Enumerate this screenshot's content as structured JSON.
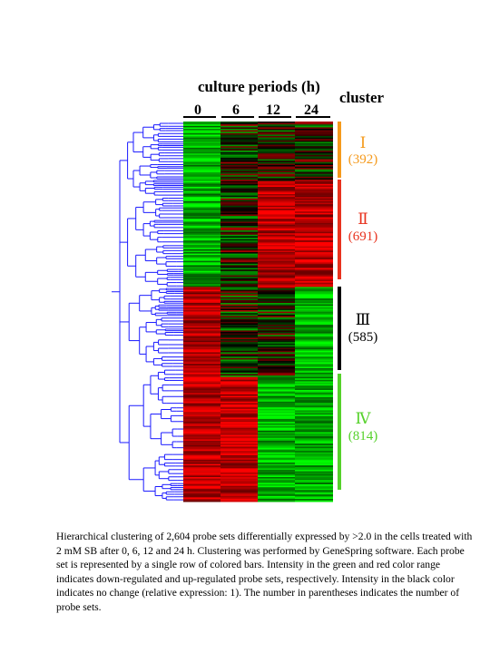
{
  "chart_data": {
    "type": "heatmap",
    "title": "culture periods (h)",
    "legend_title": "cluster",
    "columns": [
      "0",
      "6",
      "12",
      "24"
    ],
    "clusters": [
      {
        "numeral": "Ⅰ",
        "count": "(392)",
        "n": 392,
        "color": "#f59a1c",
        "mean_expression": {
          "0": "down",
          "6": "mixed",
          "12": "mixed",
          "24": "mixed"
        }
      },
      {
        "numeral": "Ⅱ",
        "count": "(691)",
        "n": 691,
        "color": "#e8321e",
        "mean_expression": {
          "0": "down",
          "6": "mixed",
          "12": "up",
          "24": "up"
        }
      },
      {
        "numeral": "Ⅲ",
        "count": "(585)",
        "n": 585,
        "color": "#000000",
        "mean_expression": {
          "0": "up",
          "6": "mixed",
          "12": "mixed",
          "24": "down"
        }
      },
      {
        "numeral": "Ⅳ",
        "count": "(814)",
        "n": 814,
        "color": "#55d12a",
        "mean_expression": {
          "0": "up",
          "6": "up",
          "12": "down",
          "24": "down"
        }
      }
    ],
    "color_scale": {
      "down": "#00ff00",
      "none": "#000000",
      "up": "#ff0000"
    }
  },
  "caption": "Hierarchical clustering of 2,604 probe sets differentially expressed by >2.0 in the cells treated with 2 mM SB after 0, 6, 12 and 24 h. Clustering was performed by GeneSpring software. Each probe set is represented by a single row of colored bars. Intensity in the green and red color range indicates down-regulated and up-regulated probe sets, respectively. Intensity in the black color indicates no change (relative expression: 1). The number in parentheses indicates the number of probe sets."
}
